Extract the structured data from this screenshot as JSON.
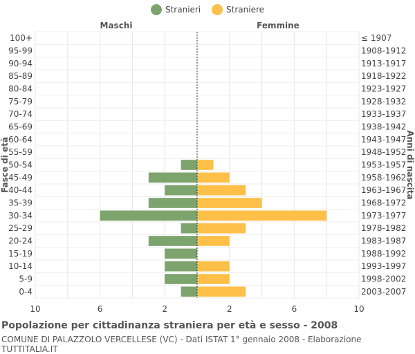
{
  "chart_data": {
    "type": "bar",
    "orientation": "horizontal-population-pyramid",
    "legend": {
      "placement": "top-center",
      "items": [
        {
          "label": "Stranieri",
          "color": "#7ea46d"
        },
        {
          "label": "Straniere",
          "color": "#ffc04a"
        }
      ]
    },
    "left_header": "Maschi",
    "right_header": "Femmine",
    "ylabel_left": "Fasce di età",
    "ylabel_right": "Anni di nascita",
    "xlim": [
      -10,
      10
    ],
    "x_ticks": [
      -10,
      -6,
      -2,
      2,
      6,
      10
    ],
    "x_tick_labels": [
      "10",
      "6",
      "2",
      "2",
      "6",
      "10"
    ],
    "grid": true,
    "categories": [
      "100+",
      "95-99",
      "90-94",
      "85-89",
      "80-84",
      "75-79",
      "70-74",
      "65-69",
      "60-64",
      "55-59",
      "50-54",
      "45-49",
      "40-44",
      "35-39",
      "30-34",
      "25-29",
      "20-24",
      "15-19",
      "10-14",
      "5-9",
      "0-4"
    ],
    "birth_years": [
      "≤ 1907",
      "1908-1912",
      "1913-1917",
      "1918-1922",
      "1923-1927",
      "1928-1932",
      "1933-1937",
      "1938-1942",
      "1943-1947",
      "1948-1952",
      "1953-1957",
      "1958-1962",
      "1963-1967",
      "1968-1972",
      "1973-1977",
      "1978-1982",
      "1983-1987",
      "1988-1992",
      "1993-1997",
      "1998-2002",
      "2003-2007"
    ],
    "series": [
      {
        "name": "Stranieri",
        "color": "#7ea46d",
        "values": [
          0,
          0,
          0,
          0,
          0,
          0,
          0,
          0,
          0,
          0,
          1,
          3,
          2,
          3,
          6,
          1,
          3,
          2,
          2,
          2,
          1
        ]
      },
      {
        "name": "Straniere",
        "color": "#ffc04a",
        "values": [
          0,
          0,
          0,
          0,
          0,
          0,
          0,
          0,
          0,
          0,
          1,
          2,
          3,
          4,
          8,
          3,
          2,
          0,
          2,
          2,
          3
        ]
      }
    ]
  },
  "footer": {
    "title": "Popolazione per cittadinanza straniera per età e sesso - 2008",
    "source": "COMUNE DI PALAZZOLO VERCELLESE (VC) - Dati ISTAT 1° gennaio 2008 - Elaborazione TUTTITALIA.IT"
  }
}
